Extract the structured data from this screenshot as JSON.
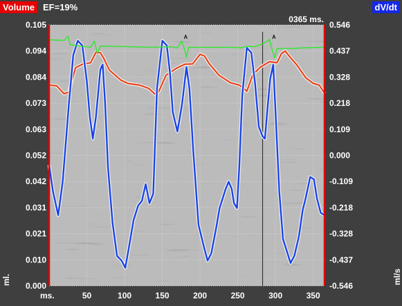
{
  "header": {
    "left_badge": "Volume",
    "right_badge": "dV/dt",
    "ef_label": "EF=19%",
    "cursor_readout": "0365 ms."
  },
  "colors": {
    "volume_axis": "#e60000",
    "dvdt_axis": "#1428e6",
    "volume_curve": "#e8421a",
    "dvdt_curve": "#1a44e6",
    "ecg_curve": "#2ee82e",
    "background": "#3f3f3f"
  },
  "chart_data": {
    "type": "line",
    "xlabel": "ms.",
    "ylabel_left": "ml.",
    "ylabel_right": "ml/s",
    "xlim": [
      0,
      365
    ],
    "x_ticks": [
      50,
      100,
      150,
      200,
      250,
      300,
      350
    ],
    "ylim_left": [
      0,
      0.105
    ],
    "y_ticks_left": [
      "0.105",
      "0.094",
      "0.084",
      "0.073",
      "0.063",
      "0.052",
      "0.042",
      "0.031",
      "0.021",
      "0.010",
      "0.000"
    ],
    "ylim_right": [
      -0.546,
      0.546
    ],
    "y_ticks_right": [
      "0.546",
      "0.437",
      "0.328",
      "0.218",
      "0.109",
      "0.000",
      "-0.109",
      "-0.218",
      "-0.328",
      "-0.437",
      "-0.546"
    ],
    "cursor_x": 283,
    "grid": true,
    "series": [
      {
        "axis": "left",
        "color": "#e8421a",
        "points": [
          [
            0,
            0.0808
          ],
          [
            10,
            0.0805
          ],
          [
            20,
            0.0773
          ],
          [
            26,
            0.078
          ],
          [
            35,
            0.0878
          ],
          [
            45,
            0.0893
          ],
          [
            55,
            0.0898
          ],
          [
            62,
            0.094
          ],
          [
            68,
            0.0938
          ],
          [
            72,
            0.0918
          ],
          [
            80,
            0.0868
          ],
          [
            95,
            0.0828
          ],
          [
            105,
            0.0814
          ],
          [
            120,
            0.0808
          ],
          [
            132,
            0.0795
          ],
          [
            140,
            0.0772
          ],
          [
            145,
            0.078
          ],
          [
            155,
            0.0848
          ],
          [
            170,
            0.0878
          ],
          [
            180,
            0.0892
          ],
          [
            190,
            0.0893
          ],
          [
            200,
            0.0932
          ],
          [
            206,
            0.0925
          ],
          [
            212,
            0.0895
          ],
          [
            225,
            0.0848
          ],
          [
            240,
            0.0818
          ],
          [
            252,
            0.0808
          ],
          [
            258,
            0.0795
          ],
          [
            262,
            0.0783
          ],
          [
            270,
            0.085
          ],
          [
            280,
            0.088
          ],
          [
            292,
            0.0902
          ],
          [
            302,
            0.0898
          ],
          [
            308,
            0.0935
          ],
          [
            313,
            0.0945
          ],
          [
            318,
            0.0925
          ],
          [
            328,
            0.089
          ],
          [
            340,
            0.0838
          ],
          [
            350,
            0.0815
          ],
          [
            358,
            0.0808
          ],
          [
            365,
            0.0775
          ]
        ]
      },
      {
        "axis": "right",
        "color": "#1a44e6",
        "points": [
          [
            0,
            -0.04
          ],
          [
            5,
            -0.15
          ],
          [
            12,
            -0.25
          ],
          [
            18,
            -0.11
          ],
          [
            26,
            0.21
          ],
          [
            32,
            0.42
          ],
          [
            38,
            0.48
          ],
          [
            44,
            0.46
          ],
          [
            50,
            0.31
          ],
          [
            54,
            0.16
          ],
          [
            58,
            0.07
          ],
          [
            62,
            0.16
          ],
          [
            68,
            0.36
          ],
          [
            71,
            0.38
          ],
          [
            74,
            0.23
          ],
          [
            78,
            -0.05
          ],
          [
            84,
            -0.28
          ],
          [
            90,
            -0.42
          ],
          [
            96,
            -0.44
          ],
          [
            101,
            -0.47
          ],
          [
            106,
            -0.38
          ],
          [
            112,
            -0.27
          ],
          [
            118,
            -0.21
          ],
          [
            123,
            -0.19
          ],
          [
            128,
            -0.12
          ],
          [
            133,
            -0.2
          ],
          [
            138,
            -0.16
          ],
          [
            143,
            0.28
          ],
          [
            150,
            0.48
          ],
          [
            156,
            0.46
          ],
          [
            160,
            0.35
          ],
          [
            164,
            0.18
          ],
          [
            170,
            0.1
          ],
          [
            176,
            0.21
          ],
          [
            182,
            0.37
          ],
          [
            186,
            0.28
          ],
          [
            191,
            0.02
          ],
          [
            198,
            -0.29
          ],
          [
            205,
            -0.38
          ],
          [
            210,
            -0.44
          ],
          [
            215,
            -0.41
          ],
          [
            221,
            -0.31
          ],
          [
            226,
            -0.22
          ],
          [
            230,
            -0.18
          ],
          [
            234,
            -0.14
          ],
          [
            238,
            -0.11
          ],
          [
            242,
            -0.14
          ],
          [
            245,
            -0.2
          ],
          [
            249,
            -0.22
          ],
          [
            252,
            -0.05
          ],
          [
            256,
            0.25
          ],
          [
            262,
            0.45
          ],
          [
            268,
            0.43
          ],
          [
            273,
            0.3
          ],
          [
            278,
            0.12
          ],
          [
            283,
            0.08
          ],
          [
            286,
            0.07
          ],
          [
            289,
            0.18
          ],
          [
            293,
            0.32
          ],
          [
            297,
            0.38
          ],
          [
            300,
            0.19
          ],
          [
            305,
            -0.15
          ],
          [
            310,
            -0.35
          ],
          [
            316,
            -0.41
          ],
          [
            320,
            -0.45
          ],
          [
            325,
            -0.42
          ],
          [
            331,
            -0.34
          ],
          [
            336,
            -0.23
          ],
          [
            340,
            -0.18
          ],
          [
            346,
            -0.09
          ],
          [
            351,
            -0.1
          ],
          [
            355,
            -0.18
          ],
          [
            360,
            -0.24
          ],
          [
            365,
            -0.25
          ]
        ]
      },
      {
        "axis": "left",
        "color": "#2ee82e",
        "points": [
          [
            0,
            0.099
          ],
          [
            20,
            0.0988
          ],
          [
            25,
            0.1005
          ],
          [
            28,
            0.097
          ],
          [
            33,
            0.0968
          ],
          [
            55,
            0.096
          ],
          [
            60,
            0.0985
          ],
          [
            64,
            0.0935
          ],
          [
            68,
            0.0965
          ],
          [
            90,
            0.0964
          ],
          [
            130,
            0.096
          ],
          [
            160,
            0.0962
          ],
          [
            170,
            0.0958
          ],
          [
            176,
            0.0985
          ],
          [
            180,
            0.0945
          ],
          [
            182,
            0.092
          ],
          [
            185,
            0.096
          ],
          [
            205,
            0.096
          ],
          [
            240,
            0.096
          ],
          [
            255,
            0.0958
          ],
          [
            262,
            0.0964
          ],
          [
            272,
            0.0962
          ],
          [
            280,
            0.097
          ],
          [
            288,
            0.0982
          ],
          [
            292,
            0.0992
          ],
          [
            296,
            0.0945
          ],
          [
            299,
            0.0918
          ],
          [
            302,
            0.0955
          ],
          [
            320,
            0.0955
          ],
          [
            340,
            0.0958
          ],
          [
            365,
            0.096
          ]
        ]
      }
    ]
  }
}
